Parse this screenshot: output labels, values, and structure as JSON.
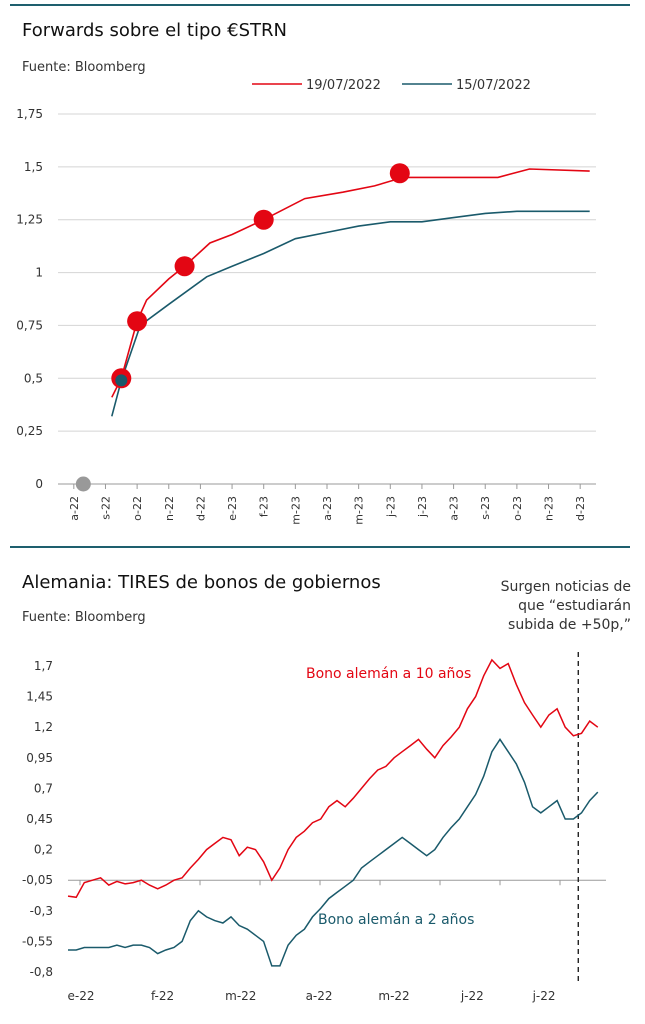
{
  "chart_data": [
    {
      "type": "line",
      "title": "Forwards sobre el tipo €STRN",
      "subtitle": "Fuente: Bloomberg",
      "xlabel": "",
      "ylabel": "",
      "ylim": [
        0,
        1.75
      ],
      "yticks": [
        "0",
        "0,25",
        "0,5",
        "0,75",
        "1",
        "1,25",
        "1,5",
        "1,75"
      ],
      "categories": [
        "a-22",
        "s-22",
        "o-22",
        "n-22",
        "d-22",
        "e-23",
        "f-23",
        "m-23",
        "a-23",
        "m-23",
        "j-23",
        "j-23",
        "a-23",
        "s-23",
        "o-23",
        "n-23",
        "d-23"
      ],
      "grid": true,
      "legend_position": "top",
      "series": [
        {
          "name": "19/07/2022",
          "color": "#e30613",
          "points": [
            [
              1.2,
              0.41
            ],
            [
              1.5,
              0.5
            ],
            [
              2.0,
              0.77
            ],
            [
              2.3,
              0.87
            ],
            [
              3.0,
              0.97
            ],
            [
              3.5,
              1.03
            ],
            [
              4.3,
              1.14
            ],
            [
              5.0,
              1.18
            ],
            [
              6.0,
              1.25
            ],
            [
              7.3,
              1.35
            ],
            [
              8.5,
              1.38
            ],
            [
              9.5,
              1.41
            ],
            [
              10.4,
              1.45
            ],
            [
              11.5,
              1.45
            ],
            [
              13.4,
              1.45
            ],
            [
              14.4,
              1.49
            ],
            [
              16.3,
              1.48
            ]
          ],
          "markers": [
            [
              1.5,
              0.5
            ],
            [
              2.0,
              0.77
            ],
            [
              3.5,
              1.03
            ],
            [
              6.0,
              1.25
            ],
            [
              10.3,
              1.47
            ]
          ]
        },
        {
          "name": "15/07/2022",
          "color": "#1a5a6b",
          "points": [
            [
              1.2,
              0.32
            ],
            [
              1.5,
              0.49
            ],
            [
              2.1,
              0.75
            ],
            [
              3.0,
              0.85
            ],
            [
              4.2,
              0.98
            ],
            [
              5.0,
              1.03
            ],
            [
              6.0,
              1.09
            ],
            [
              7.0,
              1.16
            ],
            [
              8.0,
              1.19
            ],
            [
              9.0,
              1.22
            ],
            [
              10.0,
              1.24
            ],
            [
              11.0,
              1.24
            ],
            [
              12.0,
              1.26
            ],
            [
              13.0,
              1.28
            ],
            [
              14.0,
              1.29
            ],
            [
              15.0,
              1.29
            ],
            [
              16.3,
              1.29
            ]
          ],
          "markers": [
            [
              1.5,
              0.49
            ]
          ]
        },
        {
          "name": "",
          "color": "#999999",
          "points": [
            [
              0.3,
              0.0
            ]
          ],
          "markers": [
            [
              0.3,
              0.0
            ]
          ]
        }
      ]
    },
    {
      "type": "line",
      "title": "Alemania: TIRES de bonos de gobiernos",
      "subtitle": "Fuente: Bloomberg",
      "xlabel": "",
      "ylabel": "",
      "ylim": [
        -0.8,
        1.7
      ],
      "yticks": [
        "-0,8",
        "-0,55",
        "-0,3",
        "-0,05",
        "0,2",
        "0,45",
        "0,7",
        "0,95",
        "1,2",
        "1,45",
        "1,7"
      ],
      "xticks": [
        "e-22",
        "f-22",
        "m-22",
        "a-22",
        "m-22",
        "j-22",
        "j-22"
      ],
      "x_range_weeks": [
        0,
        28
      ],
      "grid": false,
      "annotation": "Surgen noticias de que “estudiarán subida de +50p,”",
      "series": [
        {
          "name": "Bono alemán a 10 años",
          "color": "#e30613",
          "points": [
            [
              0,
              -0.18
            ],
            [
              0.5,
              -0.19
            ],
            [
              1,
              -0.07
            ],
            [
              1.5,
              -0.05
            ],
            [
              2,
              -0.03
            ],
            [
              2.5,
              -0.09
            ],
            [
              3,
              -0.06
            ],
            [
              3.5,
              -0.08
            ],
            [
              4,
              -0.07
            ],
            [
              4.5,
              -0.05
            ],
            [
              5,
              -0.09
            ],
            [
              5.5,
              -0.12
            ],
            [
              6,
              -0.09
            ],
            [
              6.5,
              -0.05
            ],
            [
              7,
              -0.03
            ],
            [
              7.5,
              0.05
            ],
            [
              8,
              0.12
            ],
            [
              8.5,
              0.2
            ],
            [
              9,
              0.25
            ],
            [
              9.5,
              0.3
            ],
            [
              10,
              0.28
            ],
            [
              10.5,
              0.15
            ],
            [
              11,
              0.22
            ],
            [
              11.5,
              0.2
            ],
            [
              12,
              0.1
            ],
            [
              12.5,
              -0.05
            ],
            [
              13,
              0.05
            ],
            [
              13.5,
              0.2
            ],
            [
              14,
              0.3
            ],
            [
              14.5,
              0.35
            ],
            [
              15,
              0.42
            ],
            [
              15.5,
              0.45
            ],
            [
              16,
              0.55
            ],
            [
              16.5,
              0.6
            ],
            [
              17,
              0.55
            ],
            [
              17.5,
              0.62
            ],
            [
              18,
              0.7
            ],
            [
              18.5,
              0.78
            ],
            [
              19,
              0.85
            ],
            [
              19.5,
              0.88
            ],
            [
              20,
              0.95
            ],
            [
              20.5,
              1.0
            ],
            [
              21,
              1.05
            ],
            [
              21.5,
              1.1
            ],
            [
              22,
              1.02
            ],
            [
              22.5,
              0.95
            ],
            [
              23,
              1.05
            ],
            [
              23.5,
              1.12
            ],
            [
              24,
              1.2
            ],
            [
              24.5,
              1.35
            ],
            [
              25,
              1.45
            ],
            [
              25.5,
              1.62
            ],
            [
              26,
              1.75
            ],
            [
              26.5,
              1.68
            ],
            [
              27,
              1.72
            ],
            [
              27.5,
              1.55
            ],
            [
              28,
              1.4
            ],
            [
              28.5,
              1.3
            ],
            [
              29,
              1.2
            ],
            [
              29.5,
              1.3
            ],
            [
              30,
              1.35
            ],
            [
              30.5,
              1.2
            ],
            [
              31,
              1.13
            ],
            [
              31.5,
              1.15
            ],
            [
              32,
              1.25
            ],
            [
              32.5,
              1.2
            ]
          ]
        },
        {
          "name": "Bono alemán a 2 años",
          "color": "#1a5a6b",
          "points": [
            [
              0,
              -0.62
            ],
            [
              0.5,
              -0.62
            ],
            [
              1,
              -0.6
            ],
            [
              1.5,
              -0.6
            ],
            [
              2,
              -0.6
            ],
            [
              2.5,
              -0.6
            ],
            [
              3,
              -0.58
            ],
            [
              3.5,
              -0.6
            ],
            [
              4,
              -0.58
            ],
            [
              4.5,
              -0.58
            ],
            [
              5,
              -0.6
            ],
            [
              5.5,
              -0.65
            ],
            [
              6,
              -0.62
            ],
            [
              6.5,
              -0.6
            ],
            [
              7,
              -0.55
            ],
            [
              7.5,
              -0.38
            ],
            [
              8,
              -0.3
            ],
            [
              8.5,
              -0.35
            ],
            [
              9,
              -0.38
            ],
            [
              9.5,
              -0.4
            ],
            [
              10,
              -0.35
            ],
            [
              10.5,
              -0.42
            ],
            [
              11,
              -0.45
            ],
            [
              11.5,
              -0.5
            ],
            [
              12,
              -0.55
            ],
            [
              12.5,
              -0.75
            ],
            [
              13,
              -0.75
            ],
            [
              13.5,
              -0.58
            ],
            [
              14,
              -0.5
            ],
            [
              14.5,
              -0.45
            ],
            [
              15,
              -0.35
            ],
            [
              15.5,
              -0.28
            ],
            [
              16,
              -0.2
            ],
            [
              16.5,
              -0.15
            ],
            [
              17,
              -0.1
            ],
            [
              17.5,
              -0.05
            ],
            [
              18,
              0.05
            ],
            [
              18.5,
              0.1
            ],
            [
              19,
              0.15
            ],
            [
              19.5,
              0.2
            ],
            [
              20,
              0.25
            ],
            [
              20.5,
              0.3
            ],
            [
              21,
              0.25
            ],
            [
              21.5,
              0.2
            ],
            [
              22,
              0.15
            ],
            [
              22.5,
              0.2
            ],
            [
              23,
              0.3
            ],
            [
              23.5,
              0.38
            ],
            [
              24,
              0.45
            ],
            [
              24.5,
              0.55
            ],
            [
              25,
              0.65
            ],
            [
              25.5,
              0.8
            ],
            [
              26,
              1.0
            ],
            [
              26.5,
              1.1
            ],
            [
              27,
              1.0
            ],
            [
              27.5,
              0.9
            ],
            [
              28,
              0.75
            ],
            [
              28.5,
              0.55
            ],
            [
              29,
              0.5
            ],
            [
              29.5,
              0.55
            ],
            [
              30,
              0.6
            ],
            [
              30.5,
              0.45
            ],
            [
              31,
              0.45
            ],
            [
              31.5,
              0.5
            ],
            [
              32,
              0.6
            ],
            [
              32.5,
              0.67
            ]
          ]
        }
      ]
    }
  ]
}
